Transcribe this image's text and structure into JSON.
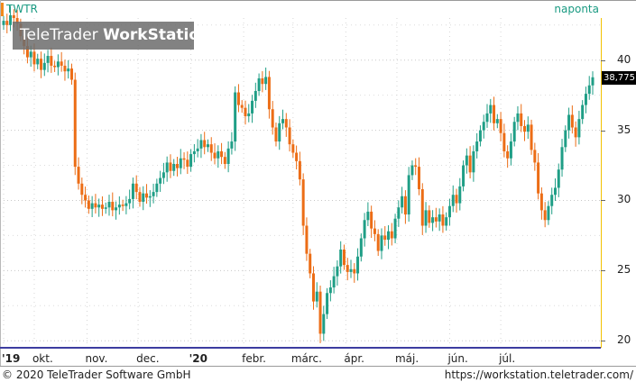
{
  "header": {
    "ticker": "TWTR",
    "period": "naponta"
  },
  "watermark": {
    "brand": "TeleTrader",
    "product": "WorkStation"
  },
  "price_tag": "38,775",
  "footer": {
    "copyright": "© 2020 TeleTrader Software GmbH",
    "url": "https://workstation.teletrader.com/"
  },
  "colors": {
    "up": "#1f9e86",
    "down": "#ec6d16",
    "axis_accent": "#f2c200",
    "baseline": "#3c3ca0"
  },
  "chart_data": {
    "type": "candlestick",
    "title": "TWTR",
    "xlabel": "",
    "ylabel": "",
    "ylim": [
      19.5,
      43
    ],
    "yticks": [
      20,
      25,
      30,
      35,
      40
    ],
    "x_tick_labels": [
      {
        "label": "'19",
        "bold": true,
        "day": 0
      },
      {
        "label": "okt.",
        "bold": false,
        "day": 18
      },
      {
        "label": "nov.",
        "bold": false,
        "day": 49
      },
      {
        "label": "dec.",
        "bold": false,
        "day": 79
      },
      {
        "label": "'20",
        "bold": true,
        "day": 110
      },
      {
        "label": "febr.",
        "bold": false,
        "day": 141
      },
      {
        "label": "márc.",
        "bold": false,
        "day": 170
      },
      {
        "label": "ápr.",
        "bold": false,
        "day": 201
      },
      {
        "label": "máj.",
        "bold": false,
        "day": 231
      },
      {
        "label": "jún.",
        "bold": false,
        "day": 262
      },
      {
        "label": "júl.",
        "bold": false,
        "day": 292
      }
    ],
    "last_price": 38.775,
    "close_series": [
      [
        0,
        42.8
      ],
      [
        2,
        42.5
      ],
      [
        4,
        43.2
      ],
      [
        6,
        43.0
      ],
      [
        8,
        42.6
      ],
      [
        10,
        41.7
      ],
      [
        12,
        41.0
      ],
      [
        14,
        40.2
      ],
      [
        16,
        40.6
      ],
      [
        18,
        39.7
      ],
      [
        20,
        40.1
      ],
      [
        22,
        39.3
      ],
      [
        24,
        39.8
      ],
      [
        26,
        40.3
      ],
      [
        28,
        39.6
      ],
      [
        30,
        39.5
      ],
      [
        32,
        39.9
      ],
      [
        34,
        39.6
      ],
      [
        36,
        39.2
      ],
      [
        38,
        39.4
      ],
      [
        40,
        38.6
      ],
      [
        42,
        32.4
      ],
      [
        44,
        31.2
      ],
      [
        46,
        30.4
      ],
      [
        48,
        30.0
      ],
      [
        50,
        29.4
      ],
      [
        52,
        29.8
      ],
      [
        54,
        29.5
      ],
      [
        56,
        29.7
      ],
      [
        58,
        29.4
      ],
      [
        60,
        29.5
      ],
      [
        62,
        29.9
      ],
      [
        64,
        29.3
      ],
      [
        66,
        29.5
      ],
      [
        68,
        29.7
      ],
      [
        70,
        29.6
      ],
      [
        72,
        29.8
      ],
      [
        74,
        30.1
      ],
      [
        76,
        31.2
      ],
      [
        78,
        30.6
      ],
      [
        80,
        29.9
      ],
      [
        82,
        30.5
      ],
      [
        84,
        30.2
      ],
      [
        86,
        30.3
      ],
      [
        88,
        30.6
      ],
      [
        90,
        31.2
      ],
      [
        92,
        31.6
      ],
      [
        94,
        32.0
      ],
      [
        96,
        32.7
      ],
      [
        98,
        32.1
      ],
      [
        100,
        32.6
      ],
      [
        102,
        32.3
      ],
      [
        104,
        33.0
      ],
      [
        106,
        32.9
      ],
      [
        108,
        32.4
      ],
      [
        110,
        33.3
      ],
      [
        112,
        33.5
      ],
      [
        114,
        33.7
      ],
      [
        116,
        34.3
      ],
      [
        118,
        33.8
      ],
      [
        120,
        34.0
      ],
      [
        122,
        33.4
      ],
      [
        124,
        33.0
      ],
      [
        126,
        33.5
      ],
      [
        128,
        33.1
      ],
      [
        130,
        32.6
      ],
      [
        132,
        33.7
      ],
      [
        134,
        34.2
      ],
      [
        136,
        37.7
      ],
      [
        138,
        36.8
      ],
      [
        140,
        36.6
      ],
      [
        142,
        36.0
      ],
      [
        144,
        36.2
      ],
      [
        146,
        37.1
      ],
      [
        148,
        37.8
      ],
      [
        150,
        38.7
      ],
      [
        152,
        38.3
      ],
      [
        154,
        38.8
      ],
      [
        156,
        36.5
      ],
      [
        158,
        35.2
      ],
      [
        160,
        34.2
      ],
      [
        162,
        35.5
      ],
      [
        164,
        35.8
      ],
      [
        166,
        35.2
      ],
      [
        168,
        34.0
      ],
      [
        170,
        33.4
      ],
      [
        172,
        32.8
      ],
      [
        174,
        31.5
      ],
      [
        176,
        28.2
      ],
      [
        178,
        26.2
      ],
      [
        180,
        24.8
      ],
      [
        182,
        22.8
      ],
      [
        184,
        23.5
      ],
      [
        186,
        20.5
      ],
      [
        188,
        21.9
      ],
      [
        190,
        23.4
      ],
      [
        192,
        23.8
      ],
      [
        194,
        24.6
      ],
      [
        196,
        25.3
      ],
      [
        198,
        26.5
      ],
      [
        200,
        25.4
      ],
      [
        202,
        24.9
      ],
      [
        204,
        25.1
      ],
      [
        206,
        24.8
      ],
      [
        208,
        26.0
      ],
      [
        210,
        27.3
      ],
      [
        212,
        28.6
      ],
      [
        214,
        29.2
      ],
      [
        216,
        28.0
      ],
      [
        218,
        27.6
      ],
      [
        220,
        26.4
      ],
      [
        222,
        27.5
      ],
      [
        224,
        27.2
      ],
      [
        226,
        27.8
      ],
      [
        228,
        27.3
      ],
      [
        230,
        28.7
      ],
      [
        232,
        29.5
      ],
      [
        234,
        30.3
      ],
      [
        236,
        29.0
      ],
      [
        238,
        31.8
      ],
      [
        240,
        32.5
      ],
      [
        242,
        32.4
      ],
      [
        244,
        30.8
      ],
      [
        246,
        28.2
      ],
      [
        248,
        29.3
      ],
      [
        250,
        28.4
      ],
      [
        252,
        28.8
      ],
      [
        254,
        28.5
      ],
      [
        256,
        29.0
      ],
      [
        258,
        28.2
      ],
      [
        260,
        28.8
      ],
      [
        262,
        29.6
      ],
      [
        264,
        30.4
      ],
      [
        266,
        29.8
      ],
      [
        268,
        31.0
      ],
      [
        270,
        32.5
      ],
      [
        272,
        33.2
      ],
      [
        274,
        32.0
      ],
      [
        276,
        33.5
      ],
      [
        278,
        34.2
      ],
      [
        280,
        35.0
      ],
      [
        282,
        35.6
      ],
      [
        284,
        36.2
      ],
      [
        286,
        36.8
      ],
      [
        288,
        35.5
      ],
      [
        290,
        35.8
      ],
      [
        292,
        34.8
      ],
      [
        294,
        33.5
      ],
      [
        296,
        33.0
      ],
      [
        298,
        34.2
      ],
      [
        300,
        35.6
      ],
      [
        302,
        36.2
      ],
      [
        304,
        35.3
      ],
      [
        306,
        34.9
      ],
      [
        308,
        35.4
      ],
      [
        310,
        33.6
      ],
      [
        312,
        32.7
      ],
      [
        314,
        30.5
      ],
      [
        316,
        29.3
      ],
      [
        318,
        28.6
      ],
      [
        320,
        29.6
      ],
      [
        322,
        30.4
      ],
      [
        324,
        30.9
      ],
      [
        326,
        32.2
      ],
      [
        328,
        33.8
      ],
      [
        330,
        35.0
      ],
      [
        332,
        36.1
      ],
      [
        334,
        35.2
      ],
      [
        336,
        34.5
      ],
      [
        338,
        35.8
      ],
      [
        340,
        36.8
      ],
      [
        342,
        37.6
      ],
      [
        344,
        38.2
      ],
      [
        346,
        38.775
      ]
    ]
  }
}
